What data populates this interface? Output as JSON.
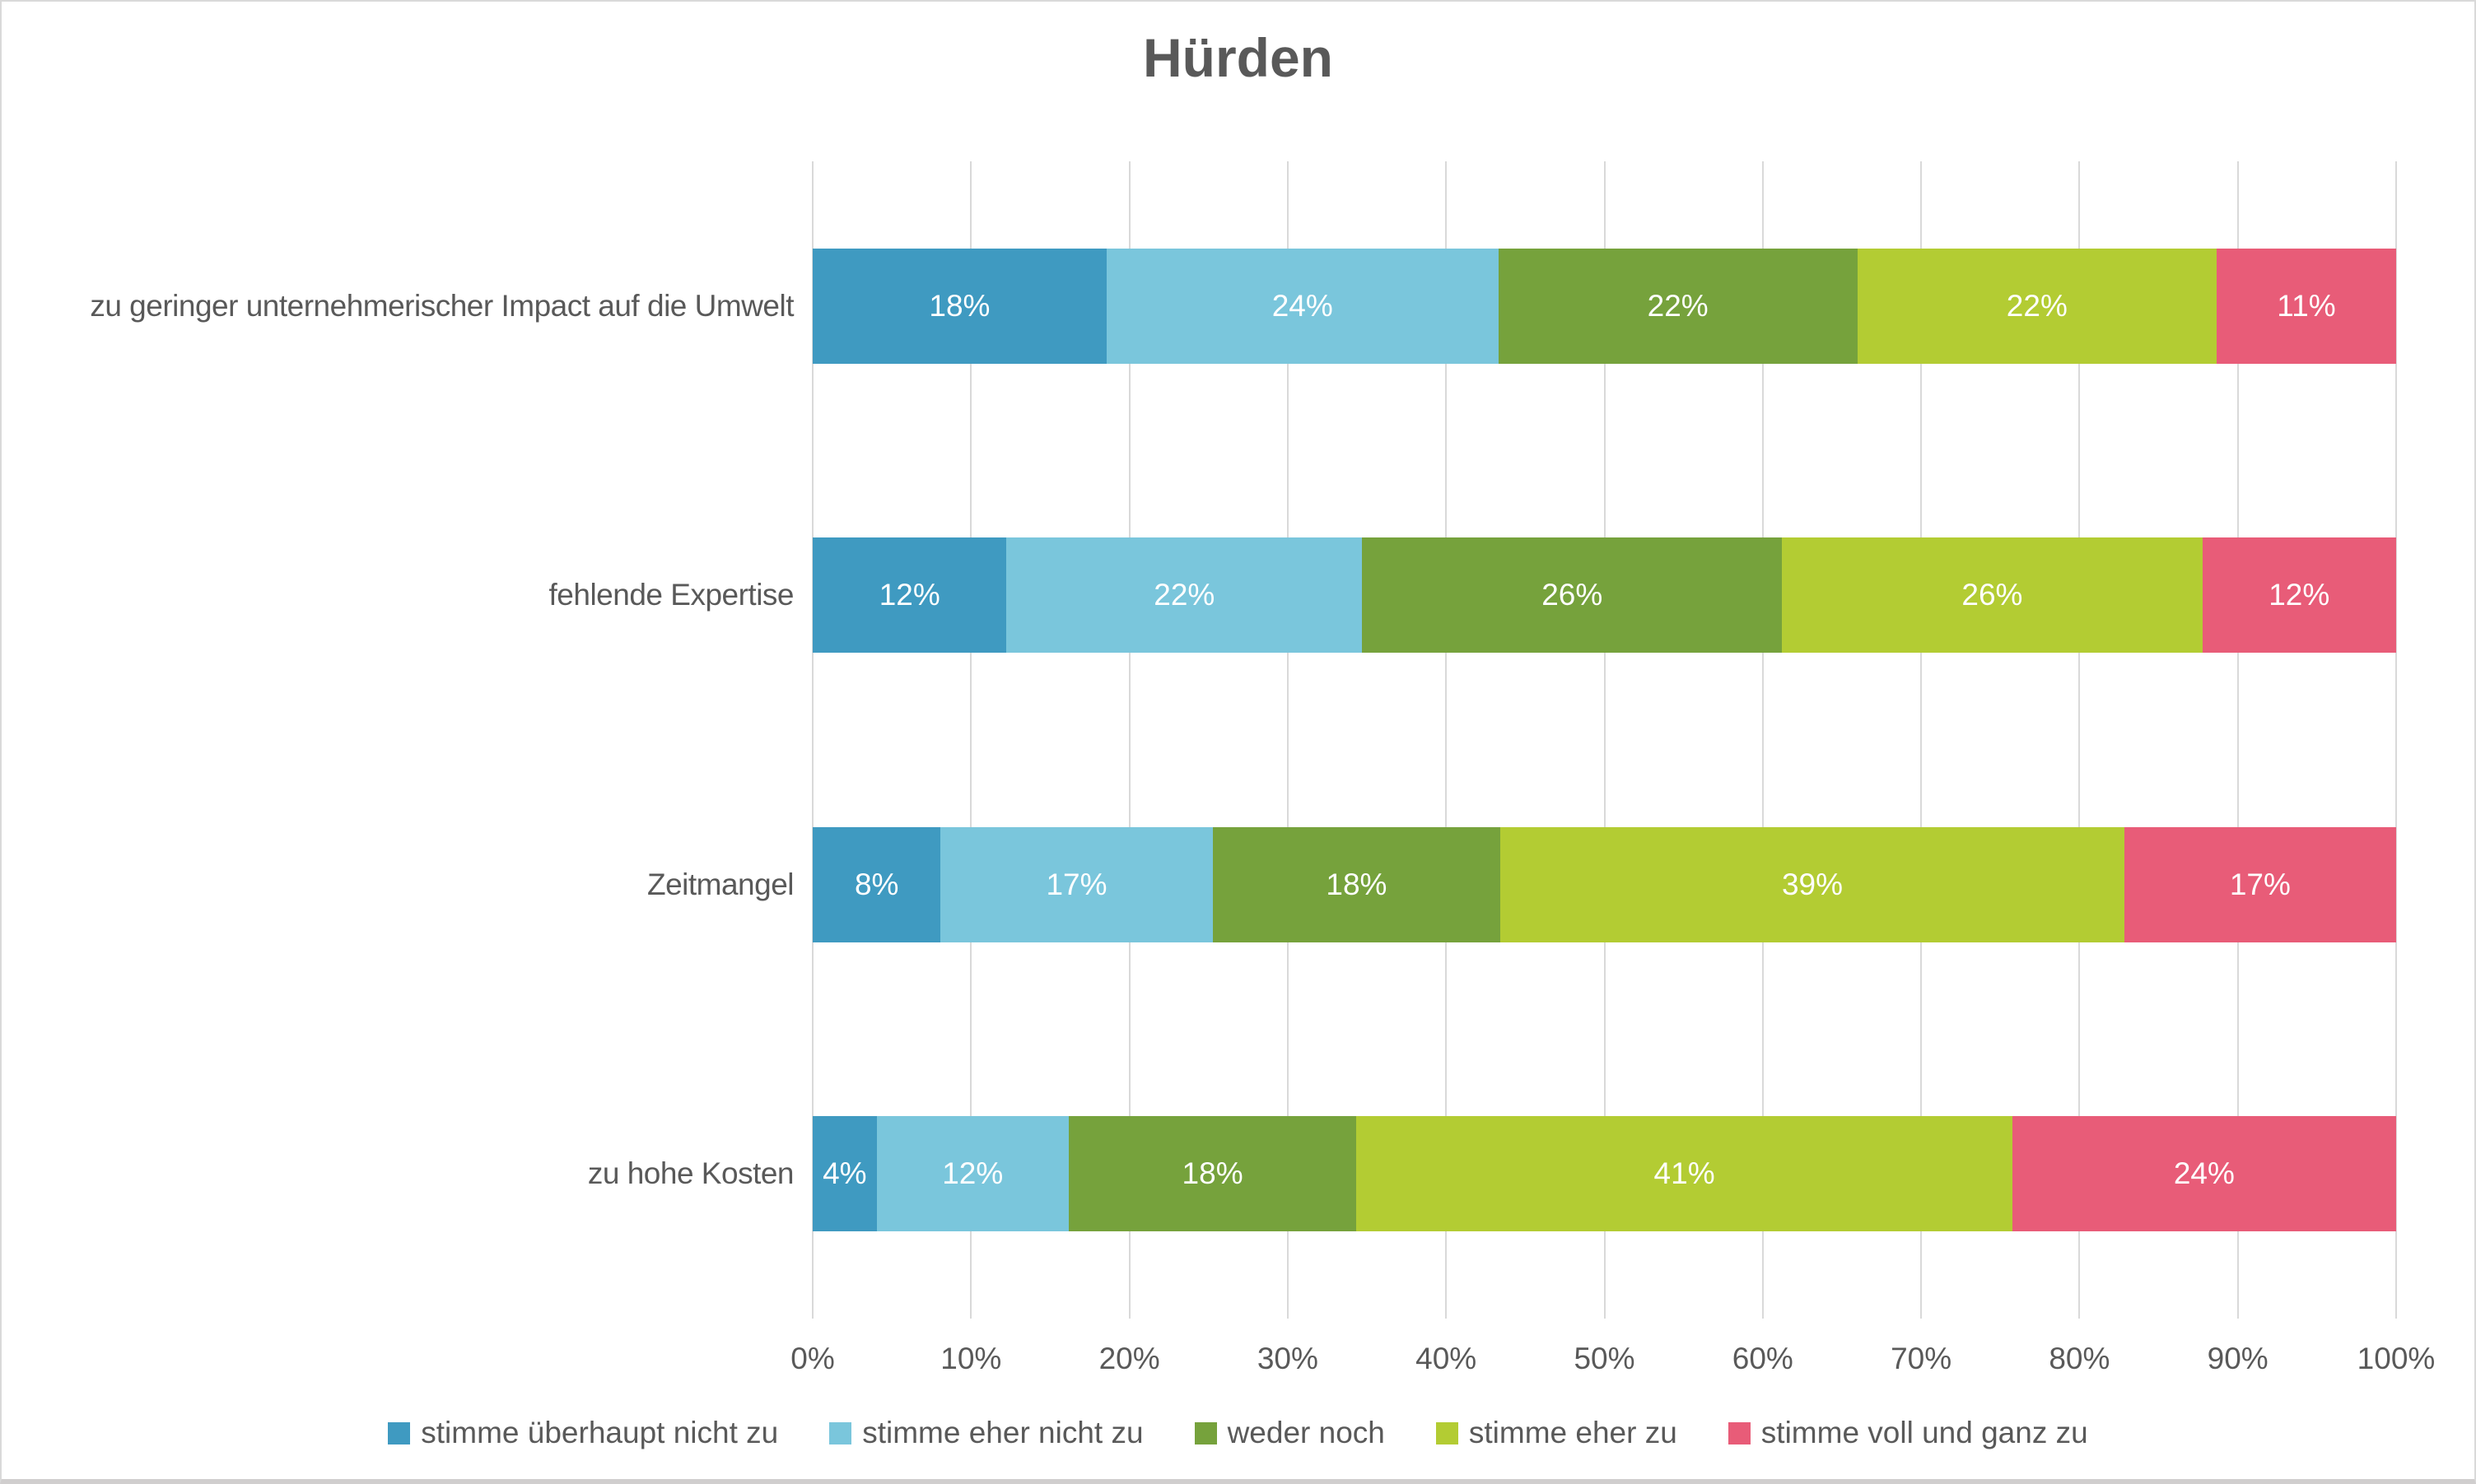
{
  "title": "Hürden",
  "chart_data": {
    "type": "bar",
    "variant": "100%-stacked-horizontal",
    "title": "Hürden",
    "xlabel": "",
    "ylabel": "",
    "xlim": [
      0,
      100
    ],
    "grid": true,
    "legend_position": "bottom",
    "value_suffix": "%",
    "x_axis_ticks": [
      "0%",
      "10%",
      "20%",
      "30%",
      "40%",
      "50%",
      "60%",
      "70%",
      "80%",
      "90%",
      "100%"
    ],
    "categories": [
      "zu geringer unternehmerischer Impact auf die Umwelt",
      "fehlende Expertise",
      "Zeitmangel",
      "zu hohe Kosten"
    ],
    "series": [
      {
        "name": "stimme überhaupt nicht zu",
        "color": "#3f9ac1",
        "values": [
          18,
          12,
          8,
          4
        ]
      },
      {
        "name": "stimme eher nicht zu",
        "color": "#7ac6dc",
        "values": [
          24,
          22,
          17,
          12
        ]
      },
      {
        "name": "weder noch",
        "color": "#76a23c",
        "values": [
          22,
          26,
          18,
          18
        ]
      },
      {
        "name": "stimme eher zu",
        "color": "#b3cc33",
        "values": [
          22,
          26,
          39,
          41
        ]
      },
      {
        "name": "stimme voll und ganz zu",
        "color": "#e85c78",
        "values": [
          11,
          12,
          17,
          24
        ]
      }
    ],
    "colors": {
      "title_text": "#595959",
      "axis_text": "#595959",
      "gridline": "#d9d9d9",
      "bar_label_text": "#ffffff"
    }
  }
}
